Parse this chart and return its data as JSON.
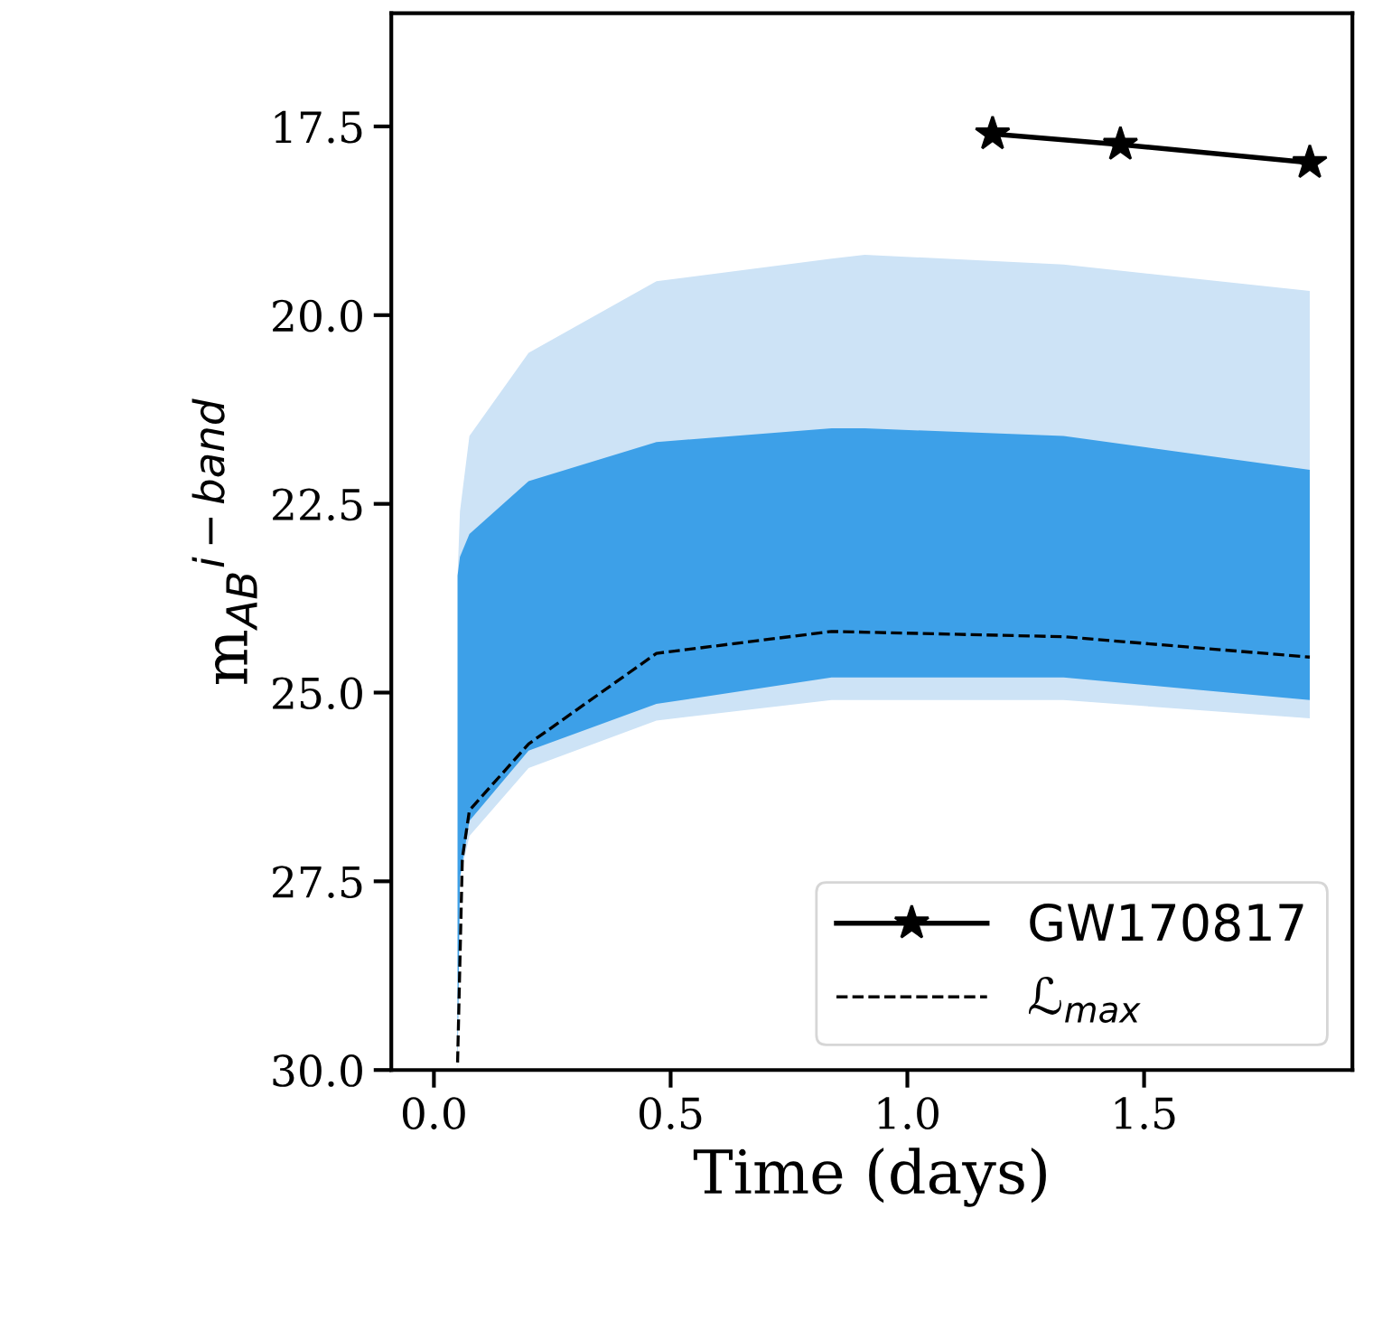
{
  "chart_data": {
    "type": "line",
    "xlabel": "Time (days)",
    "ylabel": "m$_{AB}$$^{i−band}$",
    "xlim": [
      -0.09,
      1.94
    ],
    "xticks": [
      {
        "value": 0.0,
        "label": "0.0"
      },
      {
        "value": 0.5,
        "label": "0.5"
      },
      {
        "value": 1.0,
        "label": "1.0"
      },
      {
        "value": 1.5,
        "label": "1.5"
      }
    ],
    "ylim": [
      30.0,
      16.0
    ],
    "yticks": [
      {
        "value": 17.5,
        "label": "17.5"
      },
      {
        "value": 20.0,
        "label": "20.0"
      },
      {
        "value": 22.5,
        "label": "22.5"
      },
      {
        "value": 25.0,
        "label": "25.0"
      },
      {
        "value": 27.5,
        "label": "27.5"
      },
      {
        "value": 30.0,
        "label": "30.0"
      }
    ],
    "grid": false,
    "legend": "bottom right",
    "series": [
      {
        "type": "line",
        "color": "#cde3f6",
        "x": [
          0.05,
          0.055,
          0.075,
          0.2,
          0.47,
          0.84,
          0.91,
          1.33,
          1.85
        ],
        "values": [
          null,
          null,
          null,
          null,
          null,
          null,
          null,
          null,
          null
        ],
        "upper": [
          23.45,
          22.6,
          21.6,
          20.5,
          19.55,
          19.25,
          19.2,
          19.33,
          19.68
        ],
        "lower": [
          30.0,
          27.45,
          26.9,
          26.0,
          25.37,
          25.1,
          25.1,
          25.1,
          25.34
        ]
      },
      {
        "type": "line",
        "color": "#3da0e8",
        "x": [
          0.05,
          0.055,
          0.075,
          0.2,
          0.47,
          0.84,
          0.91,
          1.33,
          1.85
        ],
        "values": [
          null,
          null,
          null,
          null,
          null,
          null,
          null,
          null,
          null
        ],
        "upper": [
          23.45,
          23.2,
          22.9,
          22.2,
          21.68,
          21.5,
          21.5,
          21.6,
          22.05
        ],
        "lower": [
          30.0,
          27.45,
          26.7,
          25.77,
          25.15,
          24.8,
          24.8,
          24.8,
          25.1
        ]
      },
      {
        "type": "line",
        "name": "GW170817",
        "color": "#000000",
        "marker": "star",
        "line_style": "solid",
        "x": [
          1.18,
          1.45,
          1.85
        ],
        "values": [
          17.6,
          17.74,
          17.98
        ]
      },
      {
        "type": "line",
        "name": "ℒ$_{max}$",
        "color": "#000000",
        "marker": "none",
        "line_style": "dashed",
        "x": [
          0.05,
          0.06,
          0.075,
          0.2,
          0.47,
          0.84,
          1.33,
          1.85
        ],
        "values": [
          29.9,
          27.2,
          26.56,
          25.68,
          24.48,
          24.19,
          24.26,
          24.53
        ]
      }
    ]
  }
}
